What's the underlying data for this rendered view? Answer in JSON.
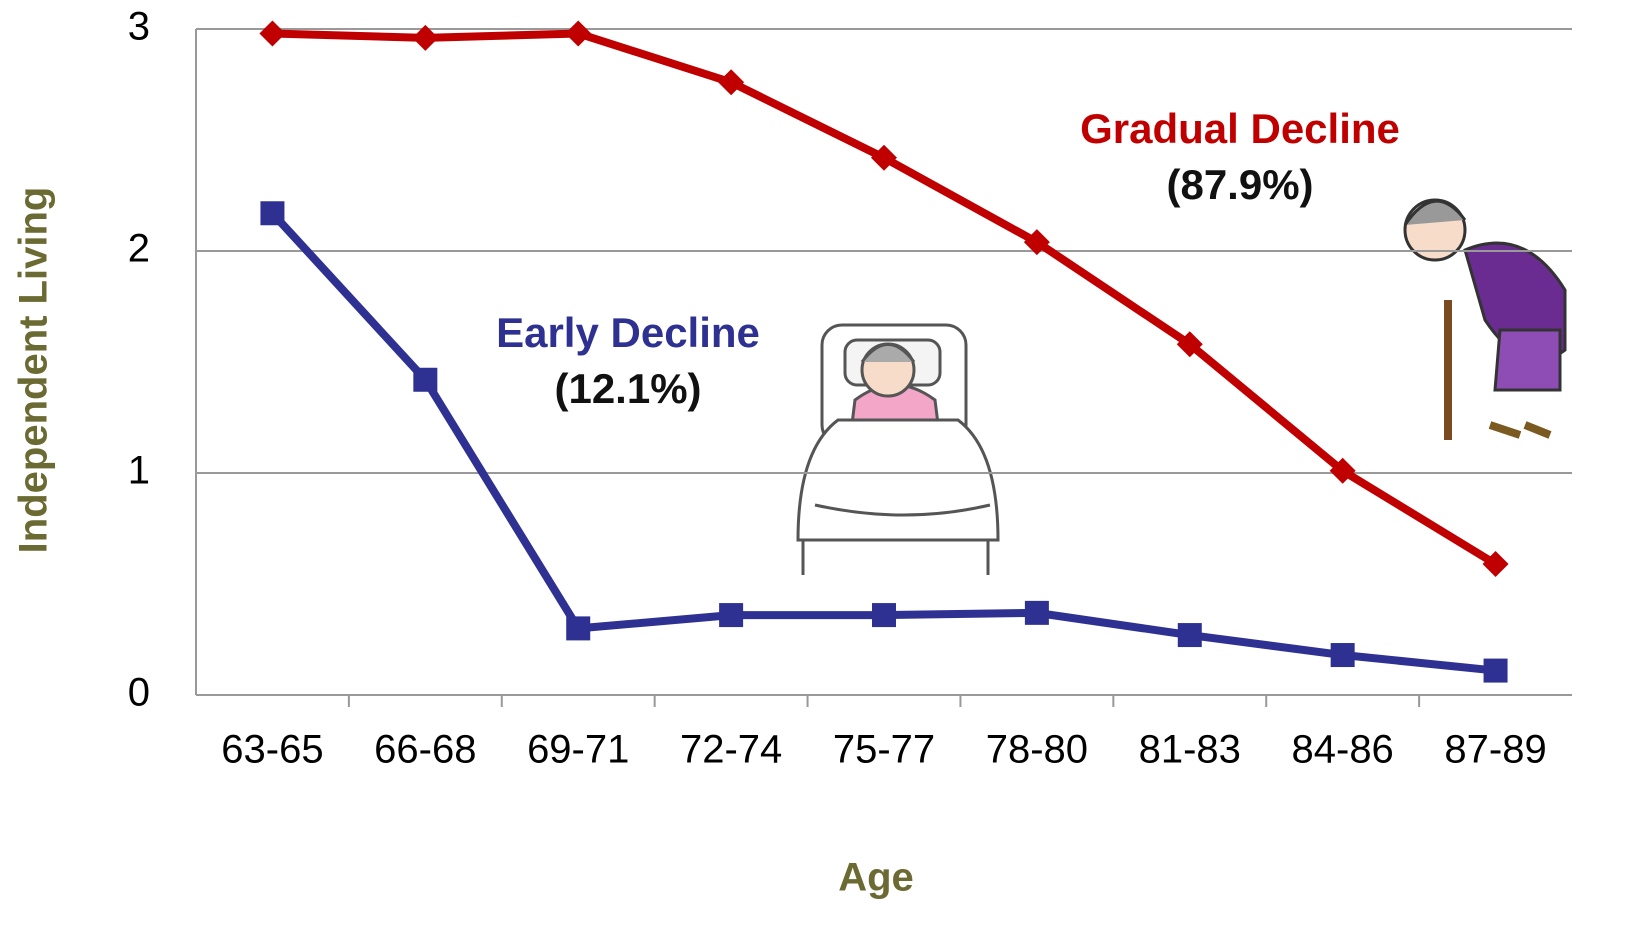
{
  "chart_data": {
    "type": "line",
    "xlabel": "Age",
    "ylabel": "Independent Living",
    "categories": [
      "63-65",
      "66-68",
      "69-71",
      "72-74",
      "75-77",
      "78-80",
      "81-83",
      "84-86",
      "87-89"
    ],
    "series": [
      {
        "name": "Gradual Decline",
        "color": "#c00000",
        "marker": "diamond",
        "values": [
          2.98,
          2.96,
          2.98,
          2.76,
          2.42,
          2.04,
          1.58,
          1.01,
          0.59
        ]
      },
      {
        "name": "Early Decline",
        "color": "#2e3192",
        "marker": "square",
        "values": [
          2.17,
          1.42,
          0.3,
          0.36,
          0.36,
          0.37,
          0.27,
          0.18,
          0.11
        ]
      }
    ],
    "annotations": [
      "(87.9%)",
      "(12.1%)"
    ],
    "ylim": [
      0,
      3
    ],
    "yticks": [
      0,
      1,
      2,
      3
    ],
    "grid": true
  }
}
